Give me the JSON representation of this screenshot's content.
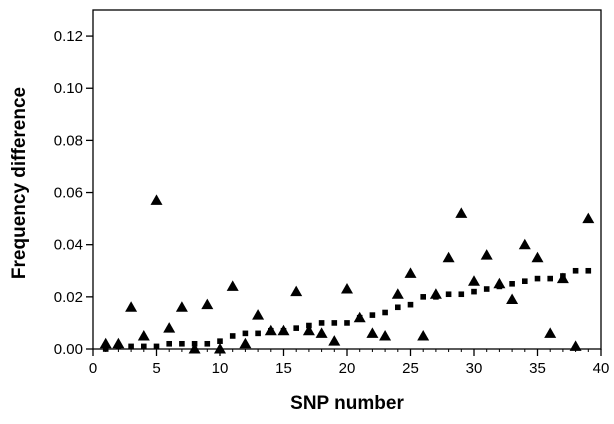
{
  "chart_data": {
    "type": "scatter",
    "title": "",
    "xlabel": "SNP number",
    "ylabel": "Frequency difference",
    "xlim": [
      0,
      40
    ],
    "ylim": [
      0,
      0.13
    ],
    "xticks": [
      0,
      5,
      10,
      15,
      20,
      25,
      30,
      35,
      40
    ],
    "yticks": [
      0.0,
      0.02,
      0.04,
      0.06,
      0.08,
      0.1,
      0.12
    ],
    "x_tick_labels": [
      "0",
      "5",
      "10",
      "15",
      "20",
      "25",
      "30",
      "35",
      "40"
    ],
    "y_tick_labels": [
      "0.00",
      "0.02",
      "0.04",
      "0.06",
      "0.08",
      "0.10",
      "0.12"
    ],
    "grid": false,
    "legend": "none",
    "series": [
      {
        "marker": "triangle",
        "color": "#000000",
        "x": [
          1,
          2,
          3,
          4,
          5,
          6,
          7,
          8,
          9,
          10,
          11,
          12,
          13,
          14,
          15,
          16,
          17,
          18,
          19,
          20,
          21,
          22,
          23,
          24,
          25,
          26,
          27,
          28,
          29,
          30,
          31,
          32,
          33,
          34,
          35,
          36,
          37,
          38,
          39
        ],
        "y": [
          0.002,
          0.002,
          0.016,
          0.005,
          0.057,
          0.008,
          0.016,
          0.0,
          0.017,
          0.0,
          0.024,
          0.002,
          0.013,
          0.007,
          0.007,
          0.022,
          0.007,
          0.006,
          0.003,
          0.023,
          0.012,
          0.006,
          0.005,
          0.021,
          0.029,
          0.005,
          0.021,
          0.035,
          0.052,
          0.026,
          0.036,
          0.025,
          0.019,
          0.04,
          0.035,
          0.006,
          0.027,
          0.001,
          0.05
        ]
      },
      {
        "marker": "square-dotted-line",
        "color": "#000000",
        "x": [
          1,
          2,
          3,
          4,
          5,
          6,
          7,
          8,
          9,
          10,
          11,
          12,
          13,
          14,
          15,
          16,
          17,
          18,
          19,
          20,
          21,
          22,
          23,
          24,
          25,
          26,
          27,
          28,
          29,
          30,
          31,
          32,
          33,
          34,
          35,
          36,
          37,
          38,
          39
        ],
        "y": [
          0.0,
          0.001,
          0.001,
          0.001,
          0.001,
          0.002,
          0.002,
          0.002,
          0.002,
          0.003,
          0.005,
          0.006,
          0.006,
          0.007,
          0.007,
          0.008,
          0.009,
          0.01,
          0.01,
          0.01,
          0.012,
          0.013,
          0.014,
          0.016,
          0.017,
          0.02,
          0.02,
          0.021,
          0.021,
          0.022,
          0.023,
          0.024,
          0.025,
          0.026,
          0.027,
          0.027,
          0.028,
          0.03,
          0.03
        ]
      }
    ]
  }
}
